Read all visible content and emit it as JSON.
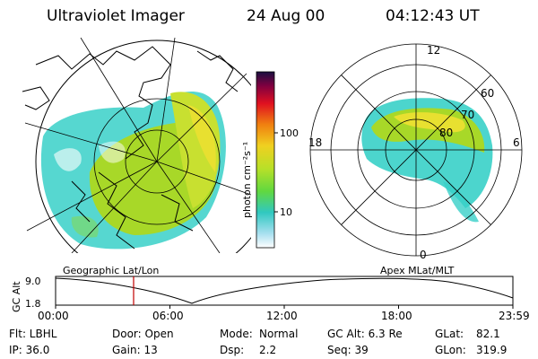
{
  "header": {
    "title": "Ultraviolet Imager",
    "date": "24 Aug 00",
    "time": "04:12:43 UT"
  },
  "colorbar": {
    "unit_label": "photon cm⁻²s⁻¹",
    "ticks": [
      "100",
      "10"
    ]
  },
  "polar_plot": {
    "mlt_labels": [
      "12",
      "18",
      "6",
      "0"
    ],
    "lat_labels": [
      "60",
      "70",
      "80"
    ]
  },
  "timeline": {
    "left_caption": "Geographic Lat/Lon",
    "right_caption": "Apex MLat/MLT",
    "axis_label": "GC Alt",
    "y_ticks": [
      "9.0",
      "1.8"
    ],
    "x_ticks": [
      "00:00",
      "06:00",
      "12:00",
      "18:00",
      "23:59"
    ],
    "marker_time": "04:12:43"
  },
  "info": {
    "filter": "Flt: LBHL",
    "door": "Door: Open",
    "mode_label": "Mode:",
    "mode_value": "Normal",
    "gc_alt": "GC Alt: 6.3 Re",
    "glat_label": "GLat:",
    "glat_value": "82.1",
    "ip": "IP: 36.0",
    "gain": "Gain: 13",
    "dsp_label": "Dsp:",
    "dsp_value": "2.2",
    "seq": "Seq: 39",
    "glon_label": "GLon:",
    "glon_value": "319.9"
  },
  "colors": {
    "aurora_bright": "#e8e030",
    "aurora_mid": "#a8d828",
    "aurora_low": "#38d0c8",
    "marker": "#c00000"
  }
}
